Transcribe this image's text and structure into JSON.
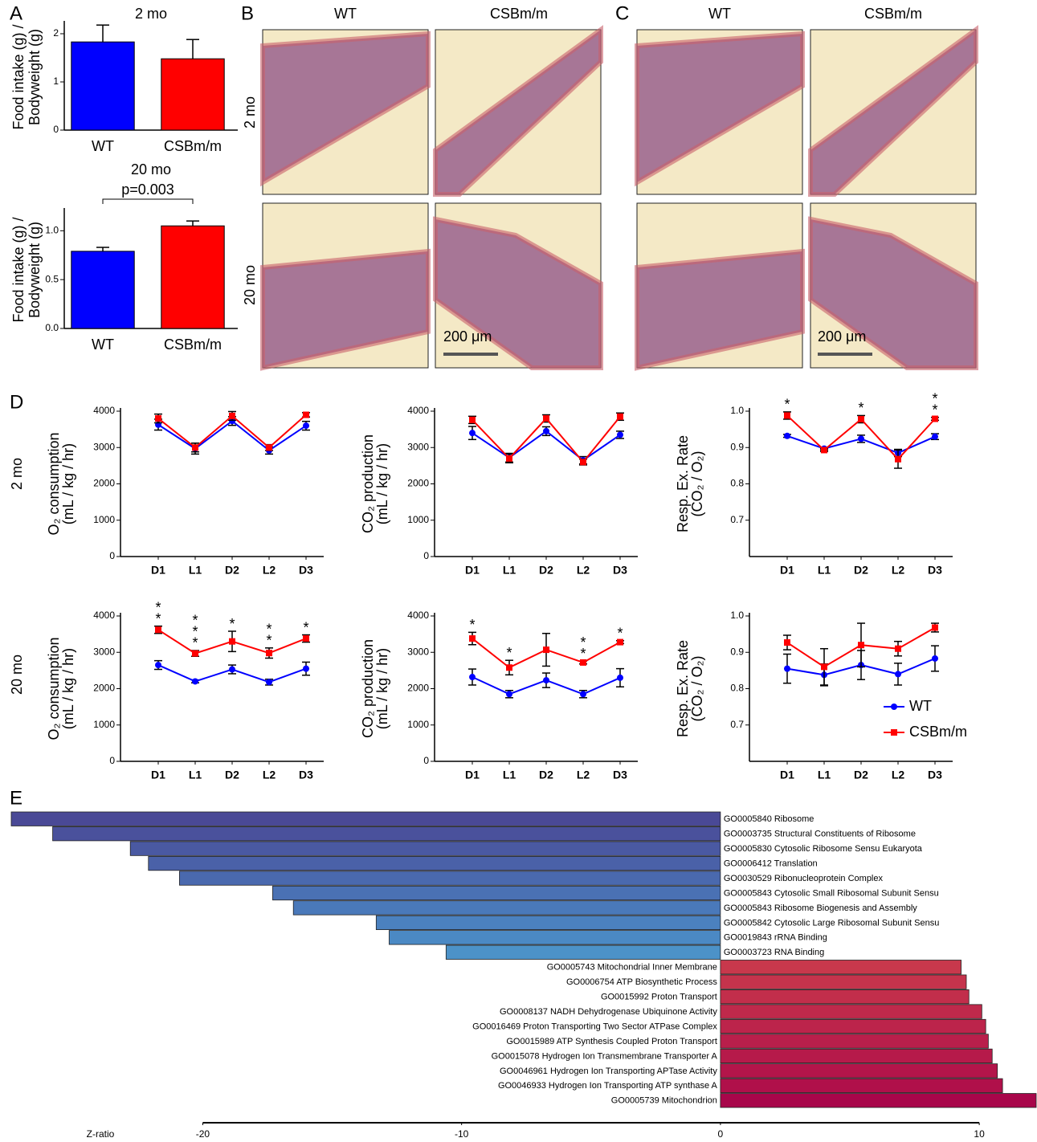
{
  "panel_labels": [
    "A",
    "B",
    "C",
    "D",
    "E"
  ],
  "histology": {
    "B": {
      "columns": [
        "WT",
        "CSBm/m"
      ],
      "rows": [
        "2 mo",
        "20 mo"
      ],
      "scale": "200 μm"
    },
    "C": {
      "columns": [
        "WT",
        "CSBm/m"
      ],
      "scale": "200 μm"
    }
  },
  "row_labels": [
    "2 mo",
    "20 mo"
  ],
  "chart_data": [
    {
      "type": "bar",
      "title": "2 mo",
      "ylabel": [
        "Food intake (g) /",
        "Bodyweight (g)"
      ],
      "categories": [
        "WT",
        "CSBm/m"
      ],
      "values": [
        1.83,
        1.48
      ],
      "errors": [
        0.35,
        0.4
      ],
      "colors": [
        "#0000ff",
        "#ff0000"
      ],
      "ylim": [
        0,
        2.2
      ],
      "yticks": [
        0,
        1,
        2
      ]
    },
    {
      "type": "bar",
      "title": "20 mo",
      "annotation": "p=0.003",
      "ylabel": [
        "Food intake (g) /",
        "Bodyweight (g)"
      ],
      "categories": [
        "WT",
        "CSBm/m"
      ],
      "values": [
        0.79,
        1.05
      ],
      "errors": [
        0.04,
        0.05
      ],
      "colors": [
        "#0000ff",
        "#ff0000"
      ],
      "ylim": [
        0,
        1.2
      ],
      "yticks": [
        {
          "value": 0,
          "label": "0.0"
        },
        0.5,
        {
          "value": 1,
          "label": "1.0"
        }
      ]
    },
    {
      "type": "line",
      "ylabel": [
        "O₂ consumption",
        "(mL / kg / hr)"
      ],
      "categories": [
        "D1",
        "L1",
        "D2",
        "L2",
        "D3"
      ],
      "ylim": [
        0,
        4000
      ],
      "yticks": [
        0,
        1000,
        2000,
        3000,
        4000
      ],
      "series": [
        {
          "name": "WT",
          "color": "#0000ff",
          "marker": "circle",
          "values": [
            3630,
            2970,
            3730,
            2920,
            3600
          ],
          "errors": [
            150,
            150,
            120,
            100,
            120
          ]
        },
        {
          "name": "CSBm/m",
          "color": "#ff0000",
          "marker": "square",
          "values": [
            3800,
            3000,
            3870,
            3000,
            3900
          ],
          "errors": [
            120,
            120,
            120,
            80,
            60
          ]
        }
      ]
    },
    {
      "type": "line",
      "ylabel": [
        "CO₂ production",
        "(mL / kg / hr)"
      ],
      "categories": [
        "D1",
        "L1",
        "D2",
        "L2",
        "D3"
      ],
      "ylim": [
        0,
        4000
      ],
      "yticks": [
        0,
        1000,
        2000,
        3000,
        4000
      ],
      "series": [
        {
          "name": "WT",
          "color": "#0000ff",
          "marker": "circle",
          "values": [
            3400,
            2720,
            3450,
            2650,
            3350
          ],
          "errors": [
            180,
            120,
            120,
            100,
            100
          ]
        },
        {
          "name": "CSBm/m",
          "color": "#ff0000",
          "marker": "square",
          "values": [
            3760,
            2700,
            3800,
            2600,
            3850
          ],
          "errors": [
            100,
            120,
            100,
            80,
            100
          ]
        }
      ]
    },
    {
      "type": "line",
      "ylabel": [
        "Resp. Ex. Rate",
        "(CO₂ / O₂)"
      ],
      "categories": [
        "D1",
        "L1",
        "D2",
        "L2",
        "D3"
      ],
      "ylim": [
        0.6,
        1.0
      ],
      "yticks": [
        0.7,
        0.8,
        0.9,
        {
          "value": 1,
          "label": "1.0"
        }
      ],
      "annotations": [
        {
          "x": "D1",
          "lines": [
            "*"
          ]
        },
        {
          "x": "D2",
          "lines": [
            "*"
          ]
        },
        {
          "x": "D3",
          "lines": [
            "*",
            "*"
          ]
        }
      ],
      "series": [
        {
          "name": "WT",
          "color": "#0000ff",
          "marker": "circle",
          "values": [
            0.932,
            0.897,
            0.924,
            0.885,
            0.93
          ],
          "errors": [
            0.004,
            0.004,
            0.01,
            0.01,
            0.008
          ]
        },
        {
          "name": "CSBm/m",
          "color": "#ff0000",
          "marker": "square",
          "values": [
            0.988,
            0.893,
            0.978,
            0.868,
            0.979
          ],
          "errors": [
            0.01,
            0.004,
            0.01,
            0.025,
            0.004
          ]
        }
      ]
    },
    {
      "type": "line",
      "ylabel": [
        "O₂ consumption",
        "(mL / kg / hr)"
      ],
      "categories": [
        "D1",
        "L1",
        "D2",
        "L2",
        "D3"
      ],
      "ylim": [
        0,
        4000
      ],
      "yticks": [
        0,
        1000,
        2000,
        3000,
        4000
      ],
      "annotations": [
        {
          "x": "D1",
          "lines": [
            "*",
            "*"
          ]
        },
        {
          "x": "L1",
          "lines": [
            "*",
            "*",
            "*"
          ]
        },
        {
          "x": "D2",
          "lines": [
            "*"
          ]
        },
        {
          "x": "L2",
          "lines": [
            "*",
            "*"
          ]
        },
        {
          "x": "D3",
          "lines": [
            "*"
          ]
        }
      ],
      "series": [
        {
          "name": "WT",
          "color": "#0000ff",
          "marker": "circle",
          "values": [
            2650,
            2200,
            2530,
            2180,
            2550
          ],
          "errors": [
            120,
            40,
            120,
            80,
            180
          ]
        },
        {
          "name": "CSBm/m",
          "color": "#ff0000",
          "marker": "square",
          "values": [
            3620,
            2970,
            3300,
            2980,
            3380
          ],
          "errors": [
            100,
            80,
            280,
            140,
            100
          ]
        }
      ]
    },
    {
      "type": "line",
      "ylabel": [
        "CO₂ production",
        "(mL / kg / hr)"
      ],
      "categories": [
        "D1",
        "L1",
        "D2",
        "L2",
        "D3"
      ],
      "ylim": [
        0,
        4000
      ],
      "yticks": [
        0,
        1000,
        2000,
        3000,
        4000
      ],
      "annotations": [
        {
          "x": "D1",
          "lines": [
            "*"
          ]
        },
        {
          "x": "L1",
          "lines": [
            "*"
          ]
        },
        {
          "x": "L2",
          "lines": [
            "*",
            "*"
          ]
        },
        {
          "x": "D3",
          "lines": [
            "*"
          ]
        }
      ],
      "series": [
        {
          "name": "WT",
          "color": "#0000ff",
          "marker": "circle",
          "values": [
            2320,
            1850,
            2230,
            1850,
            2300
          ],
          "errors": [
            220,
            100,
            200,
            100,
            250
          ]
        },
        {
          "name": "CSBm/m",
          "color": "#ff0000",
          "marker": "square",
          "values": [
            3380,
            2580,
            3070,
            2720,
            3280
          ],
          "errors": [
            170,
            200,
            450,
            40,
            40
          ]
        }
      ]
    },
    {
      "type": "line",
      "ylabel": [
        "Resp. Ex. Rate",
        "(CO₂ / O₂)"
      ],
      "categories": [
        "D1",
        "L1",
        "D2",
        "L2",
        "D3"
      ],
      "ylim": [
        0.6,
        1.0
      ],
      "yticks": [
        0.7,
        0.8,
        0.9,
        {
          "value": 1,
          "label": "1.0"
        }
      ],
      "legend": "lower right",
      "series": [
        {
          "name": "WT",
          "color": "#0000ff",
          "marker": "circle",
          "values": [
            0.855,
            0.838,
            0.865,
            0.84,
            0.883
          ],
          "errors": [
            0.04,
            0.03,
            0.04,
            0.03,
            0.035
          ]
        },
        {
          "name": "CSBm/m",
          "color": "#ff0000",
          "marker": "square",
          "values": [
            0.927,
            0.86,
            0.92,
            0.91,
            0.968
          ],
          "errors": [
            0.02,
            0.05,
            0.06,
            0.02,
            0.012
          ]
        }
      ]
    },
    {
      "type": "hbar",
      "xlabel": "Z-ratio",
      "xlim": [
        -27.4,
        12.2
      ],
      "xticks": [
        -20,
        -10,
        0,
        10
      ],
      "categories": [
        "GO0005840 Ribosome",
        "GO0003735 Structural Constituents of Ribosome",
        "GO0005830 Cytosolic Ribosome Sensu Eukaryota",
        "GO0006412 Translation",
        "GO0030529 Ribonucleoprotein Complex",
        "GO0005843 Cytosolic Small Ribosomal Subunit Sensu",
        "GO0005843 Ribosome Biogenesis and Assembly",
        "GO0005842 Cytosolic Large Ribosomal Subunit Sensu",
        "GO0019843 rRNA Binding",
        "GO0003723 RNA Binding",
        "GO0005743 Mitochondrial Inner Membrane",
        "GO0006754 ATP Biosynthetic Process",
        "GO0015992 Proton Transport",
        "GO0008137 NADH Dehydrogenase Ubiquinone Activity",
        "GO0016469 Proton Transporting Two Sector ATPase Complex",
        "GO0015989 ATP Synthesis Coupled Proton Transport",
        "GO0015078 Hydrogen Ion Transmembrane Transporter A",
        "GO0046961 Hydrogen Ion Transporting APTase Activity",
        "GO0046933 Hydrogen Ion Transporting ATP synthase A",
        "GO0005739 Mitochondrion"
      ],
      "values": [
        -27.4,
        -25.8,
        -22.8,
        -22.1,
        -20.9,
        -17.3,
        -16.5,
        -13.3,
        -12.8,
        -10.6,
        9.3,
        9.5,
        9.6,
        10.1,
        10.25,
        10.35,
        10.5,
        10.7,
        10.9,
        12.2
      ],
      "colors": [
        "#4a4996",
        "#4a519c",
        "#4a59a2",
        "#4a61a8",
        "#4a69ae",
        "#4a71b4",
        "#4a79ba",
        "#4b81bf",
        "#4b89c4",
        "#4c92c8",
        "#c8384c",
        "#c5334c",
        "#c22e4b",
        "#bf294b",
        "#bc244b",
        "#b91f4b",
        "#b61a4a",
        "#b3154a",
        "#b0104a",
        "#a8064a"
      ]
    }
  ]
}
